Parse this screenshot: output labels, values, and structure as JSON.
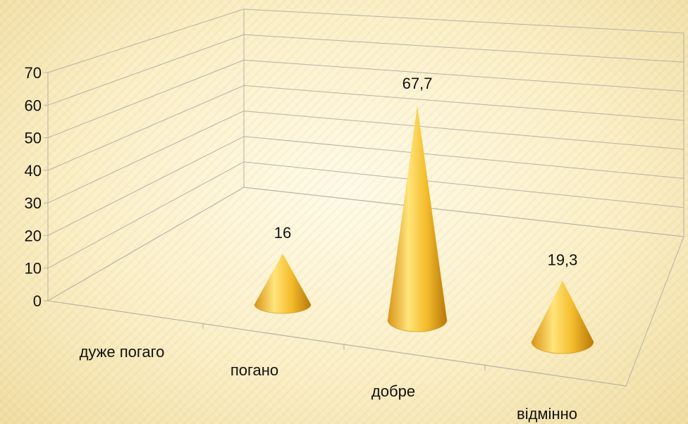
{
  "chart_data": {
    "type": "bar",
    "style": "3d-cone",
    "categories": [
      "дуже погаго",
      "погано",
      "добре",
      "відмінно"
    ],
    "series": [
      {
        "values": [
          null,
          16,
          67.7,
          19.3
        ]
      }
    ],
    "data_labels": [
      "",
      "16",
      "67,7",
      "19,3"
    ],
    "y_ticks": [
      "0",
      "10",
      "20",
      "30",
      "40",
      "50",
      "60",
      "70"
    ],
    "ylim": [
      0,
      70
    ],
    "grid": true,
    "legend": "none",
    "colors": {
      "cone_light": "#ffe47a",
      "cone_mid": "#f2b728",
      "cone_dark": "#b9780a",
      "grid": "#b5b2a8"
    }
  }
}
